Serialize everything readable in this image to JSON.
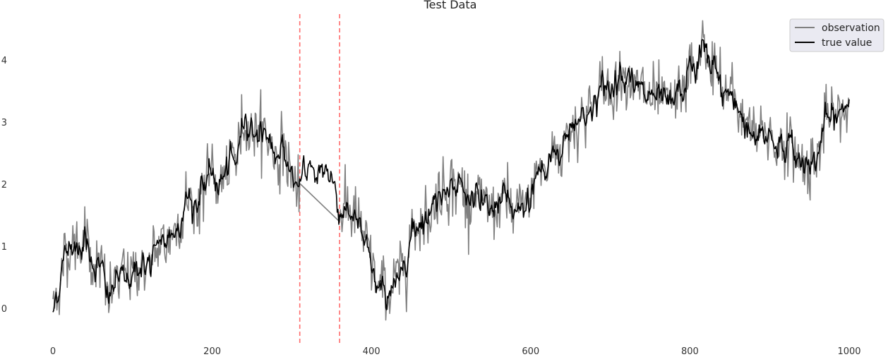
{
  "chart_data": {
    "type": "line",
    "title": "Test Data",
    "xlabel": "",
    "ylabel": "",
    "xlim": [
      -3,
      1005
    ],
    "ylim": [
      -0.55,
      4.85
    ],
    "x_ticks": [
      "0",
      "200",
      "400",
      "600",
      "800",
      "1000"
    ],
    "x_tick_values": [
      0,
      200,
      400,
      600,
      800,
      1000
    ],
    "y_ticks": [
      "0",
      "1",
      "2",
      "3",
      "4"
    ],
    "y_tick_values": [
      0,
      1,
      2,
      3,
      4
    ],
    "grid": false,
    "legend": {
      "placement": "top-right",
      "entries": [
        "observation",
        "true value"
      ]
    },
    "vlines": [
      {
        "x": 310,
        "color": "#ff6b6b",
        "style": "dashed"
      },
      {
        "x": 360,
        "color": "#ff6b6b",
        "style": "dashed"
      }
    ],
    "true_value_anchors": [
      [
        0,
        -0.03
      ],
      [
        10,
        0.55
      ],
      [
        20,
        1.05
      ],
      [
        30,
        1.0
      ],
      [
        40,
        1.15
      ],
      [
        50,
        0.75
      ],
      [
        60,
        0.65
      ],
      [
        70,
        0.15
      ],
      [
        80,
        0.5
      ],
      [
        90,
        0.45
      ],
      [
        100,
        0.6
      ],
      [
        110,
        0.7
      ],
      [
        120,
        0.65
      ],
      [
        130,
        0.9
      ],
      [
        140,
        1.05
      ],
      [
        150,
        1.2
      ],
      [
        160,
        1.5
      ],
      [
        170,
        1.75
      ],
      [
        180,
        1.65
      ],
      [
        190,
        2.0
      ],
      [
        200,
        2.15
      ],
      [
        210,
        2.0
      ],
      [
        220,
        2.2
      ],
      [
        230,
        2.4
      ],
      [
        240,
        3.1
      ],
      [
        250,
        2.85
      ],
      [
        260,
        2.9
      ],
      [
        270,
        2.75
      ],
      [
        280,
        2.5
      ],
      [
        290,
        2.55
      ],
      [
        300,
        2.15
      ],
      [
        310,
        1.85
      ],
      [
        320,
        2.3
      ],
      [
        330,
        2.25
      ],
      [
        340,
        2.2
      ],
      [
        350,
        2.15
      ],
      [
        360,
        1.55
      ],
      [
        370,
        1.65
      ],
      [
        380,
        1.45
      ],
      [
        390,
        1.1
      ],
      [
        400,
        0.7
      ],
      [
        410,
        0.25
      ],
      [
        420,
        0.3
      ],
      [
        430,
        0.35
      ],
      [
        440,
        0.7
      ],
      [
        450,
        1.2
      ],
      [
        460,
        1.45
      ],
      [
        470,
        1.5
      ],
      [
        480,
        1.7
      ],
      [
        490,
        1.95
      ],
      [
        500,
        2.05
      ],
      [
        510,
        2.0
      ],
      [
        520,
        1.75
      ],
      [
        530,
        1.85
      ],
      [
        540,
        1.6
      ],
      [
        550,
        1.55
      ],
      [
        560,
        1.7
      ],
      [
        570,
        1.75
      ],
      [
        580,
        1.45
      ],
      [
        590,
        1.6
      ],
      [
        600,
        1.8
      ],
      [
        610,
        2.3
      ],
      [
        620,
        2.15
      ],
      [
        630,
        2.6
      ],
      [
        640,
        2.55
      ],
      [
        650,
        2.95
      ],
      [
        660,
        3.05
      ],
      [
        670,
        3.15
      ],
      [
        680,
        3.3
      ],
      [
        690,
        3.55
      ],
      [
        700,
        3.5
      ],
      [
        710,
        3.75
      ],
      [
        720,
        3.9
      ],
      [
        730,
        3.55
      ],
      [
        740,
        3.45
      ],
      [
        750,
        3.4
      ],
      [
        760,
        3.3
      ],
      [
        770,
        3.25
      ],
      [
        780,
        3.3
      ],
      [
        790,
        3.5
      ],
      [
        800,
        3.8
      ],
      [
        810,
        3.9
      ],
      [
        815,
        4.3
      ],
      [
        820,
        4.0
      ],
      [
        830,
        3.95
      ],
      [
        840,
        3.45
      ],
      [
        850,
        3.45
      ],
      [
        860,
        3.25
      ],
      [
        870,
        3.0
      ],
      [
        880,
        2.8
      ],
      [
        890,
        2.75
      ],
      [
        900,
        2.85
      ],
      [
        910,
        2.6
      ],
      [
        920,
        2.65
      ],
      [
        930,
        2.5
      ],
      [
        940,
        2.35
      ],
      [
        950,
        2.4
      ],
      [
        960,
        2.4
      ],
      [
        970,
        3.0
      ],
      [
        980,
        3.05
      ],
      [
        990,
        3.15
      ],
      [
        1000,
        3.3
      ]
    ],
    "true_value_noise": 0.1,
    "observation_noise": 0.22,
    "observation_gap": [
      310,
      360
    ],
    "series": [
      {
        "name": "observation",
        "color": "#808080"
      },
      {
        "name": "true value",
        "color": "#000000"
      }
    ]
  }
}
